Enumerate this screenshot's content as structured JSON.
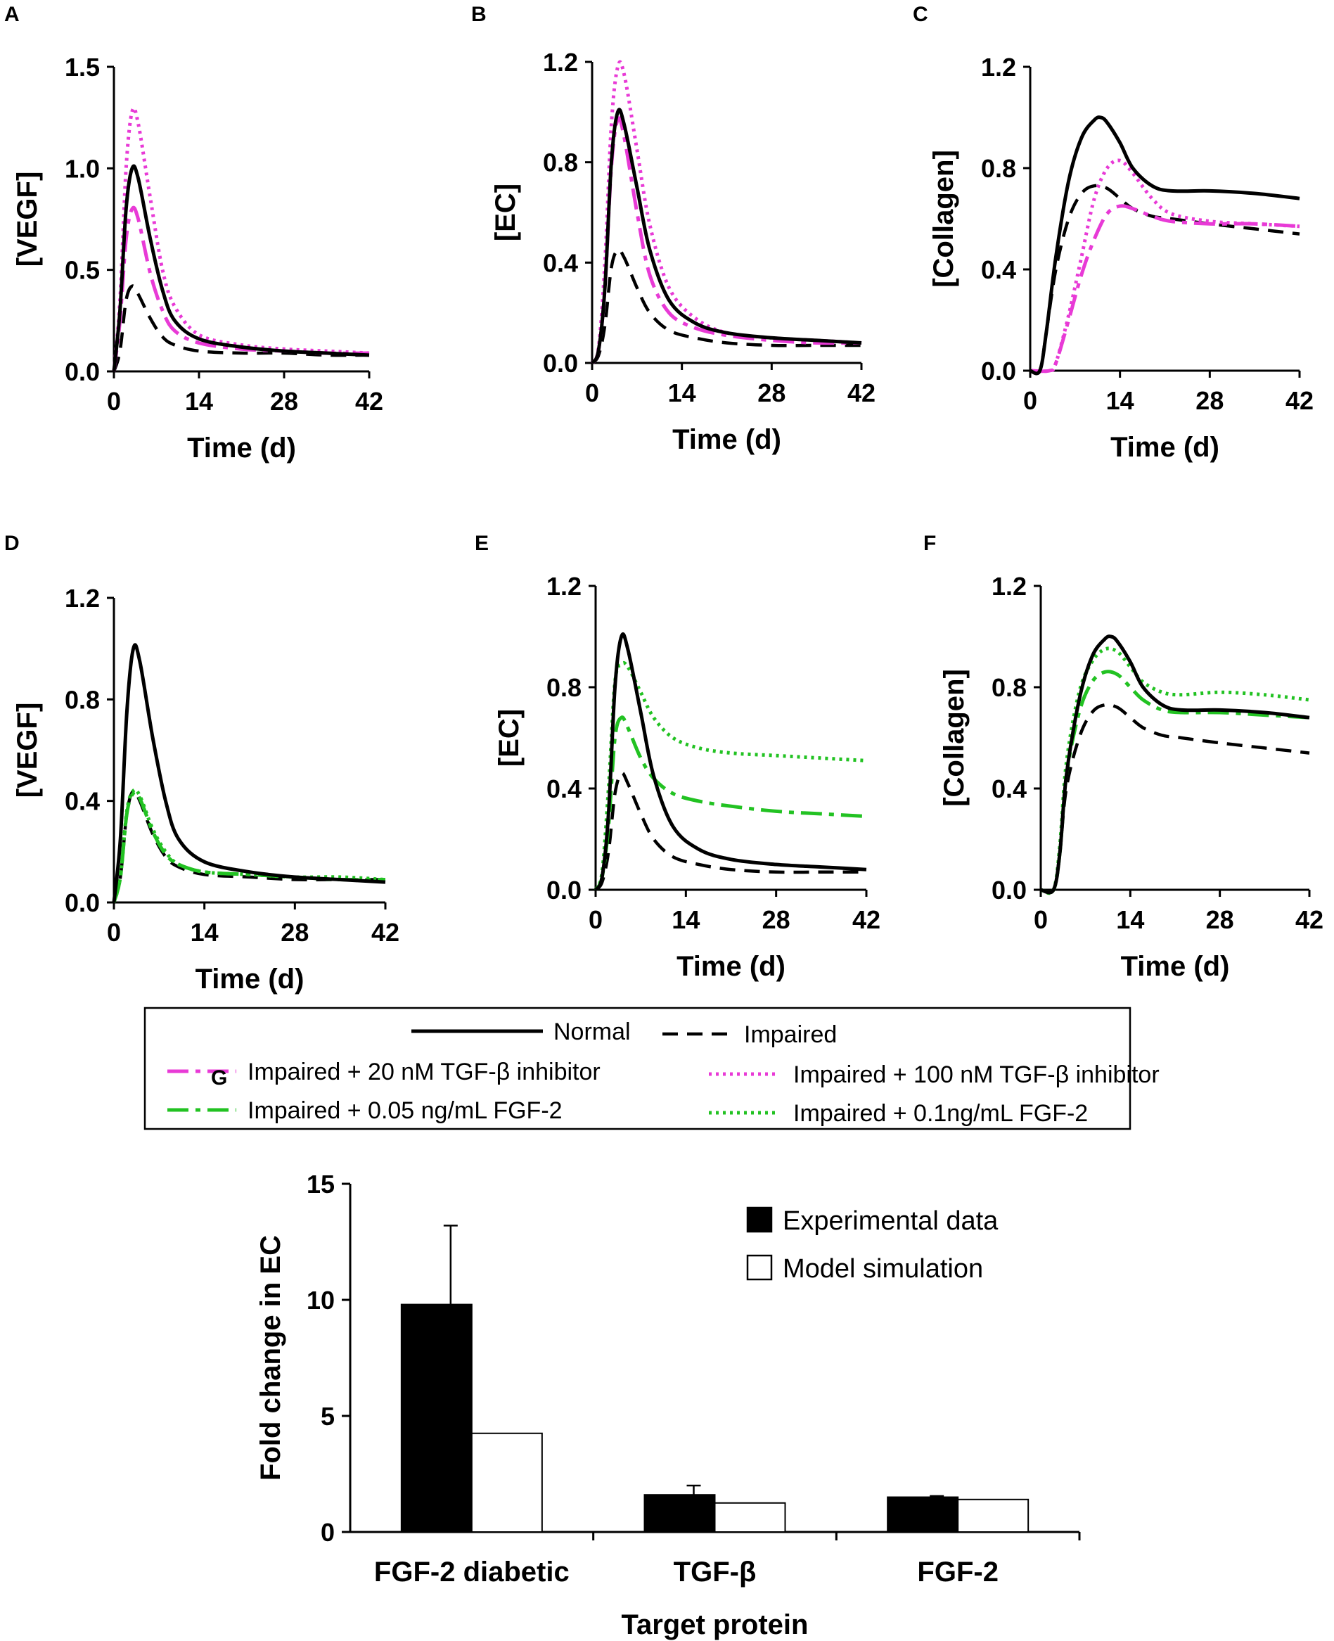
{
  "figure": {
    "colors": {
      "normal": "#000000",
      "impaired": "#000000",
      "tgf20": "#e83ad6",
      "tgf100": "#e83ad6",
      "fgf005": "#22c222",
      "fgf01": "#22c222"
    },
    "legend": {
      "normal": "Normal",
      "impaired": "Impaired",
      "tgf20": "Impaired + 20 nM TGF-β inhibitor",
      "tgf100": "Impaired + 100 nM TGF-β inhibitor",
      "fgf005": "Impaired + 0.05 ng/mL FGF-2",
      "fgf01": "Impaired + 0.1ng/mL FGF-2"
    }
  },
  "chart_data": [
    {
      "panel": "A",
      "type": "line",
      "xlabel": "Time (d)",
      "ylabel": "[VEGF]",
      "xlim": [
        0,
        42
      ],
      "ylim": [
        0,
        1.5
      ],
      "xticks": [
        "0",
        "14",
        "28",
        "42"
      ],
      "yticks": [
        "0.0",
        "0.5",
        "1.0",
        "1.5"
      ],
      "series": [
        {
          "name": "Normal",
          "key": "normal",
          "x": [
            0,
            1,
            2,
            3,
            4,
            6,
            8,
            10,
            14,
            21,
            28,
            35,
            42
          ],
          "y": [
            0,
            0.3,
            0.8,
            1.0,
            0.95,
            0.65,
            0.4,
            0.25,
            0.16,
            0.12,
            0.1,
            0.09,
            0.08
          ]
        },
        {
          "name": "Impaired",
          "key": "impaired",
          "x": [
            0,
            1,
            2,
            3,
            4,
            6,
            8,
            10,
            14,
            21,
            28,
            35,
            42
          ],
          "y": [
            0,
            0.1,
            0.35,
            0.42,
            0.38,
            0.26,
            0.17,
            0.13,
            0.1,
            0.09,
            0.09,
            0.08,
            0.08
          ]
        },
        {
          "name": "Impaired + 20 nM TGF-β inhibitor",
          "key": "tgf20",
          "x": [
            0,
            1,
            2,
            3,
            4,
            6,
            8,
            10,
            14,
            21,
            28,
            35,
            42
          ],
          "y": [
            0,
            0.25,
            0.65,
            0.8,
            0.75,
            0.48,
            0.3,
            0.2,
            0.14,
            0.11,
            0.1,
            0.09,
            0.09
          ]
        },
        {
          "name": "Impaired + 100 nM TGF-β inhibitor",
          "key": "tgf100",
          "x": [
            0,
            1,
            2,
            3,
            4,
            6,
            8,
            10,
            14,
            21,
            28,
            35,
            42
          ],
          "y": [
            0,
            0.35,
            1.0,
            1.28,
            1.22,
            0.85,
            0.5,
            0.32,
            0.18,
            0.13,
            0.11,
            0.1,
            0.09
          ]
        }
      ]
    },
    {
      "panel": "B",
      "type": "line",
      "xlabel": "Time (d)",
      "ylabel": "[EC]",
      "xlim": [
        0,
        42
      ],
      "ylim": [
        0,
        1.2
      ],
      "xticks": [
        "0",
        "14",
        "28",
        "42"
      ],
      "yticks": [
        "0.0",
        "0.4",
        "0.8",
        "1.2"
      ],
      "series": [
        {
          "name": "Normal",
          "key": "normal",
          "x": [
            0,
            1,
            2,
            3,
            4,
            5,
            7,
            9,
            12,
            16,
            21,
            28,
            35,
            42
          ],
          "y": [
            0,
            0.05,
            0.3,
            0.8,
            1.0,
            0.95,
            0.7,
            0.45,
            0.25,
            0.16,
            0.12,
            0.1,
            0.09,
            0.08
          ]
        },
        {
          "name": "Impaired",
          "key": "impaired",
          "x": [
            0,
            1,
            2,
            3,
            4,
            5,
            7,
            9,
            12,
            16,
            21,
            28,
            35,
            42
          ],
          "y": [
            0,
            0.03,
            0.15,
            0.38,
            0.45,
            0.42,
            0.3,
            0.2,
            0.13,
            0.1,
            0.08,
            0.07,
            0.07,
            0.07
          ]
        },
        {
          "name": "Impaired + 20 nM TGF-β inhibitor",
          "key": "tgf20",
          "x": [
            0,
            1,
            2,
            3,
            4,
            5,
            7,
            9,
            12,
            16,
            21,
            28,
            35,
            42
          ],
          "y": [
            0,
            0.05,
            0.3,
            0.78,
            0.97,
            0.9,
            0.6,
            0.35,
            0.2,
            0.14,
            0.11,
            0.09,
            0.08,
            0.08
          ]
        },
        {
          "name": "Impaired + 100 nM TGF-β inhibitor",
          "key": "tgf100",
          "x": [
            0,
            1,
            2,
            3,
            4,
            5,
            7,
            9,
            12,
            16,
            21,
            28,
            35,
            42
          ],
          "y": [
            0,
            0.06,
            0.4,
            0.95,
            1.18,
            1.15,
            0.85,
            0.55,
            0.3,
            0.18,
            0.12,
            0.1,
            0.09,
            0.08
          ]
        }
      ]
    },
    {
      "panel": "C",
      "type": "line",
      "xlabel": "Time (d)",
      "ylabel": "[Collagen]",
      "xlim": [
        0,
        42
      ],
      "ylim": [
        0,
        1.2
      ],
      "xticks": [
        "0",
        "14",
        "28",
        "42"
      ],
      "yticks": [
        "0.0",
        "0.4",
        "0.8",
        "1.2"
      ],
      "series": [
        {
          "name": "Normal",
          "key": "normal",
          "x": [
            0,
            1.5,
            2.5,
            4,
            6,
            8,
            10,
            11,
            12,
            14,
            16,
            19,
            22,
            28,
            35,
            42
          ],
          "y": [
            0,
            0,
            0.15,
            0.45,
            0.75,
            0.92,
            0.99,
            1.0,
            0.98,
            0.9,
            0.8,
            0.73,
            0.71,
            0.71,
            0.7,
            0.68
          ]
        },
        {
          "name": "Impaired",
          "key": "impaired",
          "x": [
            0,
            1.5,
            2.5,
            4,
            6,
            8,
            10,
            12,
            14,
            16,
            19,
            22,
            28,
            35,
            42
          ],
          "y": [
            0,
            0,
            0.15,
            0.4,
            0.6,
            0.7,
            0.73,
            0.72,
            0.68,
            0.64,
            0.61,
            0.6,
            0.58,
            0.56,
            0.54
          ]
        },
        {
          "name": "Impaired + 20 nM TGF-β inhibitor",
          "key": "tgf20",
          "x": [
            0,
            3,
            4,
            6,
            8,
            10,
            12,
            14,
            16,
            19,
            22,
            28,
            35,
            42
          ],
          "y": [
            0,
            0,
            0.03,
            0.2,
            0.38,
            0.52,
            0.62,
            0.65,
            0.64,
            0.61,
            0.59,
            0.58,
            0.58,
            0.57
          ]
        },
        {
          "name": "Impaired + 100 nM TGF-β inhibitor",
          "key": "tgf100",
          "x": [
            0,
            3,
            4,
            6,
            8,
            10,
            12,
            14,
            16,
            19,
            22,
            28,
            35,
            42
          ],
          "y": [
            0,
            0,
            0.03,
            0.22,
            0.45,
            0.68,
            0.8,
            0.83,
            0.78,
            0.68,
            0.62,
            0.59,
            0.58,
            0.57
          ]
        }
      ]
    },
    {
      "panel": "D",
      "type": "line",
      "xlabel": "Time (d)",
      "ylabel": "[VEGF]",
      "xlim": [
        0,
        42
      ],
      "ylim": [
        0,
        1.2
      ],
      "xticks": [
        "0",
        "14",
        "28",
        "42"
      ],
      "yticks": [
        "0.0",
        "0.4",
        "0.8",
        "1.2"
      ],
      "series": [
        {
          "name": "Normal",
          "key": "normal",
          "x": [
            0,
            1,
            2,
            3,
            4,
            6,
            8,
            10,
            14,
            21,
            28,
            35,
            42
          ],
          "y": [
            0,
            0.25,
            0.75,
            1.0,
            0.95,
            0.65,
            0.4,
            0.25,
            0.16,
            0.12,
            0.1,
            0.09,
            0.08
          ]
        },
        {
          "name": "Impaired",
          "key": "impaired",
          "x": [
            0,
            1,
            2,
            3,
            4,
            6,
            8,
            10,
            14,
            21,
            28,
            35,
            42
          ],
          "y": [
            0,
            0.1,
            0.35,
            0.44,
            0.4,
            0.27,
            0.18,
            0.14,
            0.11,
            0.1,
            0.09,
            0.09,
            0.09
          ]
        },
        {
          "name": "Impaired + 0.05 ng/mL FGF-2",
          "key": "fgf005",
          "x": [
            0,
            1,
            2,
            3,
            4,
            6,
            8,
            10,
            14,
            21,
            28,
            35,
            42
          ],
          "y": [
            0,
            0.1,
            0.35,
            0.43,
            0.41,
            0.28,
            0.19,
            0.15,
            0.12,
            0.11,
            0.1,
            0.09,
            0.09
          ]
        },
        {
          "name": "Impaired + 0.1ng/mL FGF-2",
          "key": "fgf01",
          "x": [
            0,
            1,
            2,
            3,
            4,
            6,
            8,
            10,
            14,
            21,
            28,
            35,
            42
          ],
          "y": [
            0,
            0.1,
            0.36,
            0.44,
            0.42,
            0.29,
            0.2,
            0.15,
            0.12,
            0.11,
            0.1,
            0.1,
            0.09
          ]
        }
      ]
    },
    {
      "panel": "E",
      "type": "line",
      "xlabel": "Time (d)",
      "ylabel": "[EC]",
      "xlim": [
        0,
        42
      ],
      "ylim": [
        0,
        1.2
      ],
      "xticks": [
        "0",
        "14",
        "28",
        "42"
      ],
      "yticks": [
        "0.0",
        "0.4",
        "0.8",
        "1.2"
      ],
      "series": [
        {
          "name": "Normal",
          "key": "normal",
          "x": [
            0,
            1,
            2,
            3,
            4,
            5,
            7,
            9,
            12,
            16,
            21,
            28,
            35,
            42
          ],
          "y": [
            0,
            0.05,
            0.3,
            0.8,
            1.0,
            0.95,
            0.7,
            0.45,
            0.25,
            0.16,
            0.12,
            0.1,
            0.09,
            0.08
          ]
        },
        {
          "name": "Impaired",
          "key": "impaired",
          "x": [
            0,
            1,
            2,
            3,
            4,
            5,
            7,
            9,
            12,
            16,
            21,
            28,
            35,
            42
          ],
          "y": [
            0,
            0.03,
            0.15,
            0.38,
            0.46,
            0.42,
            0.3,
            0.2,
            0.13,
            0.1,
            0.08,
            0.07,
            0.07,
            0.07
          ]
        },
        {
          "name": "Impaired + 0.05 ng/mL FGF-2",
          "key": "fgf005",
          "x": [
            0,
            1,
            2,
            3,
            4,
            5,
            7,
            9,
            12,
            16,
            21,
            28,
            35,
            42
          ],
          "y": [
            0,
            0.05,
            0.25,
            0.6,
            0.68,
            0.64,
            0.52,
            0.44,
            0.38,
            0.35,
            0.33,
            0.31,
            0.3,
            0.29
          ]
        },
        {
          "name": "Impaired + 0.1ng/mL FGF-2",
          "key": "fgf01",
          "x": [
            0,
            1,
            2,
            3,
            4,
            5,
            7,
            9,
            12,
            16,
            21,
            28,
            35,
            42
          ],
          "y": [
            0,
            0.07,
            0.4,
            0.82,
            0.89,
            0.88,
            0.78,
            0.68,
            0.6,
            0.56,
            0.54,
            0.53,
            0.52,
            0.51
          ]
        }
      ]
    },
    {
      "panel": "F",
      "type": "line",
      "xlabel": "Time (d)",
      "ylabel": "[Collagen]",
      "xlim": [
        0,
        42
      ],
      "ylim": [
        0,
        1.2
      ],
      "xticks": [
        "0",
        "14",
        "28",
        "42"
      ],
      "yticks": [
        "0.0",
        "0.4",
        "0.8",
        "1.2"
      ],
      "series": [
        {
          "name": "Normal",
          "key": "normal",
          "x": [
            0,
            2,
            3,
            4,
            6,
            8,
            10,
            11,
            12,
            14,
            16,
            19,
            22,
            28,
            35,
            42
          ],
          "y": [
            0,
            0,
            0.15,
            0.45,
            0.75,
            0.92,
            0.99,
            1.0,
            0.98,
            0.9,
            0.8,
            0.73,
            0.71,
            0.71,
            0.7,
            0.68
          ]
        },
        {
          "name": "Impaired",
          "key": "impaired",
          "x": [
            0,
            2,
            3,
            4,
            6,
            8,
            10,
            12,
            14,
            16,
            19,
            22,
            28,
            35,
            42
          ],
          "y": [
            0,
            0,
            0.15,
            0.4,
            0.6,
            0.7,
            0.73,
            0.72,
            0.68,
            0.64,
            0.61,
            0.6,
            0.58,
            0.56,
            0.54
          ]
        },
        {
          "name": "Impaired + 0.05 ng/mL FGF-2",
          "key": "fgf005",
          "x": [
            0,
            2,
            3,
            4,
            6,
            8,
            10,
            12,
            14,
            16,
            19,
            22,
            28,
            35,
            42
          ],
          "y": [
            0,
            0,
            0.15,
            0.45,
            0.7,
            0.82,
            0.86,
            0.85,
            0.8,
            0.75,
            0.71,
            0.7,
            0.7,
            0.69,
            0.68
          ]
        },
        {
          "name": "Impaired + 0.1ng/mL FGF-2",
          "key": "fgf01",
          "x": [
            0,
            2,
            3,
            4,
            6,
            8,
            10,
            12,
            14,
            16,
            19,
            22,
            28,
            35,
            42
          ],
          "y": [
            0,
            0,
            0.18,
            0.5,
            0.78,
            0.9,
            0.95,
            0.94,
            0.88,
            0.82,
            0.78,
            0.77,
            0.78,
            0.77,
            0.75
          ]
        }
      ]
    },
    {
      "panel": "G",
      "type": "bar",
      "xlabel": "Target protein",
      "ylabel": "Fold change in EC",
      "ylim": [
        0,
        15
      ],
      "yticks": [
        "0",
        "5",
        "10",
        "15"
      ],
      "categories": [
        "FGF-2 diabetic",
        "TGF-β",
        "FGF-2"
      ],
      "series": [
        {
          "name": "Experimental data",
          "values": [
            9.8,
            1.6,
            1.5
          ],
          "errors": [
            3.4,
            0.4,
            0.05
          ],
          "fill": "#000000"
        },
        {
          "name": "Model simulation",
          "values": [
            4.25,
            1.25,
            1.4
          ],
          "fill": "#ffffff"
        }
      ]
    }
  ]
}
